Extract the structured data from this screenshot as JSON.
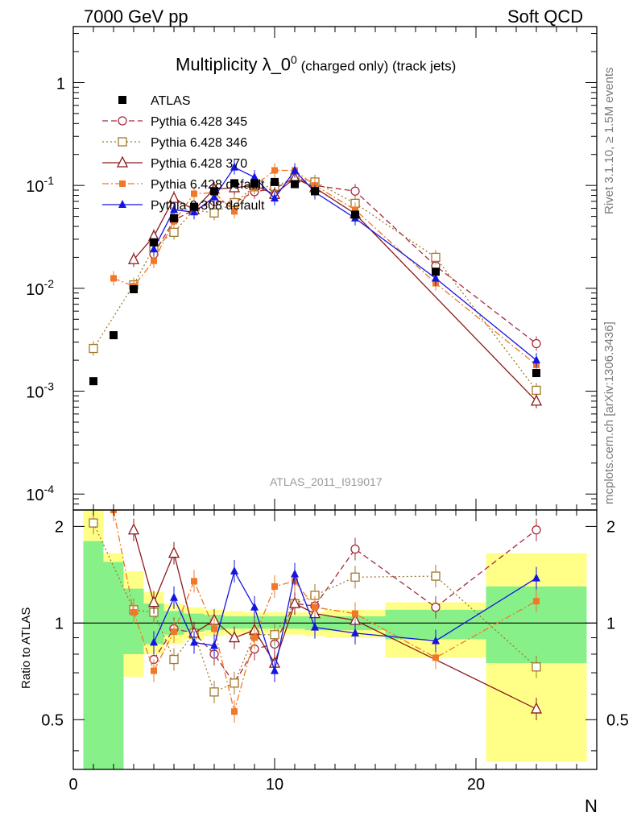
{
  "header": {
    "left": "7000 GeV pp",
    "right": "Soft QCD"
  },
  "title": {
    "main": "Multiplicity λ_0",
    "superscript": "0",
    "suffix": " (charged only) (track jets)"
  },
  "side_labels": {
    "top": "Rivet 3.1.10, ≥ 1.5M events",
    "bottom": "mcplots.cern.ch [arXiv:1306.3436]"
  },
  "analysis_id": "ATLAS_2011_I919017",
  "x_axis_label": "N",
  "ratio_axis_label": "Ratio to ATLAS",
  "legend": [
    {
      "name": "ATLAS"
    },
    {
      "name": "Pythia 6.428 345"
    },
    {
      "name": "Pythia 6.428 346"
    },
    {
      "name": "Pythia 6.428 370"
    },
    {
      "name": "Pythia 6.428 default"
    },
    {
      "name": "Pythia 8.308 default"
    }
  ],
  "chart_data": {
    "type": "scatter",
    "xlim": [
      0,
      26
    ],
    "ylim_main": [
      7e-05,
      3.5
    ],
    "y_scale_main": "log",
    "ylim_ratio": [
      0.35,
      2.25
    ],
    "y_scale_ratio": "log",
    "x_ticks": [
      0,
      10,
      20
    ],
    "y_ticks_main": [
      "10^-4",
      "10^-3",
      "10^-2",
      "10^-1",
      "1"
    ],
    "y_ticks_ratio": [
      "0.5",
      "1",
      "2"
    ],
    "data": {
      "name": "ATLAS",
      "color": "#000000",
      "x": [
        1,
        2,
        3,
        4,
        5,
        6,
        7,
        8,
        9,
        10,
        11,
        12,
        14,
        18,
        23
      ],
      "y": [
        0.00125,
        0.0035,
        0.0098,
        0.028,
        0.048,
        0.062,
        0.088,
        0.105,
        0.105,
        0.108,
        0.103,
        0.088,
        0.052,
        0.0145,
        0.0015
      ]
    },
    "bands": [
      {
        "x": [
          0.5,
          1.5
        ],
        "green": [
          0.35,
          1.8
        ],
        "yellow": [
          0.35,
          2.25
        ]
      },
      {
        "x": [
          1.5,
          2.5
        ],
        "green": [
          0.35,
          1.55
        ],
        "yellow": [
          0.35,
          1.65
        ]
      },
      {
        "x": [
          2.5,
          3.5
        ],
        "green": [
          0.8,
          1.28
        ],
        "yellow": [
          0.68,
          1.45
        ]
      },
      {
        "x": [
          3.5,
          4.5
        ],
        "green": [
          0.86,
          1.15
        ],
        "yellow": [
          0.8,
          1.25
        ]
      },
      {
        "x": [
          4.5,
          5.5
        ],
        "green": [
          0.92,
          1.09
        ],
        "yellow": [
          0.86,
          1.15
        ]
      },
      {
        "x": [
          5.5,
          6.5
        ],
        "green": [
          0.94,
          1.07
        ],
        "yellow": [
          0.89,
          1.12
        ]
      },
      {
        "x": [
          6.5,
          7.5
        ],
        "green": [
          0.95,
          1.06
        ],
        "yellow": [
          0.91,
          1.1
        ]
      },
      {
        "x": [
          7.5,
          8.5
        ],
        "green": [
          0.96,
          1.05
        ],
        "yellow": [
          0.92,
          1.09
        ]
      },
      {
        "x": [
          8.5,
          9.5
        ],
        "green": [
          0.96,
          1.05
        ],
        "yellow": [
          0.93,
          1.08
        ]
      },
      {
        "x": [
          9.5,
          10.5
        ],
        "green": [
          0.96,
          1.05
        ],
        "yellow": [
          0.93,
          1.08
        ]
      },
      {
        "x": [
          10.5,
          11.5
        ],
        "green": [
          0.96,
          1.05
        ],
        "yellow": [
          0.92,
          1.08
        ]
      },
      {
        "x": [
          11.5,
          12.5
        ],
        "green": [
          0.95,
          1.05
        ],
        "yellow": [
          0.91,
          1.08
        ]
      },
      {
        "x": [
          12.5,
          15.5
        ],
        "green": [
          0.95,
          1.05
        ],
        "yellow": [
          0.9,
          1.1
        ]
      },
      {
        "x": [
          15.5,
          20.5
        ],
        "green": [
          0.89,
          1.1
        ],
        "yellow": [
          0.78,
          1.16
        ]
      },
      {
        "x": [
          20.5,
          25.5
        ],
        "green": [
          0.75,
          1.3
        ],
        "yellow": [
          0.37,
          1.65
        ]
      }
    ],
    "series": [
      {
        "name": "Pythia 6.428 345",
        "color": "#a52a3c",
        "marker": "circle-open",
        "dash": "7,4",
        "x": [
          4,
          5,
          6,
          7,
          8,
          9,
          10,
          11,
          12,
          14,
          18,
          23
        ],
        "y": [
          0.0215,
          0.046,
          0.058,
          0.07,
          0.068,
          0.087,
          0.093,
          0.118,
          0.1,
          0.088,
          0.0165,
          0.0029
        ],
        "ratio": [
          0.77,
          0.96,
          0.93,
          0.8,
          0.65,
          0.83,
          0.86,
          1.15,
          1.13,
          1.7,
          1.12,
          1.95
        ]
      },
      {
        "name": "Pythia 6.428 346",
        "color": "#a0782a",
        "marker": "square-open",
        "dash": "2,3",
        "x": [
          1,
          3,
          4,
          5,
          6,
          7,
          8,
          9,
          10,
          11,
          12,
          14,
          18,
          23
        ],
        "y": [
          0.0026,
          0.0108,
          0.025,
          0.035,
          0.058,
          0.054,
          0.068,
          0.097,
          0.098,
          0.118,
          0.108,
          0.067,
          0.02,
          0.00102
        ],
        "ratio": [
          2.05,
          1.1,
          1.08,
          0.77,
          0.93,
          0.61,
          0.65,
          0.92,
          0.92,
          1.15,
          1.22,
          1.39,
          1.4,
          0.73
        ]
      },
      {
        "name": "Pythia 6.428 370",
        "color": "#8b1a1a",
        "marker": "triangle-open",
        "dash": "",
        "x": [
          3,
          4,
          5,
          6,
          7,
          8,
          9,
          10,
          11,
          12,
          14,
          23
        ],
        "y": [
          0.019,
          0.032,
          0.075,
          0.058,
          0.092,
          0.095,
          0.1,
          0.082,
          0.118,
          0.095,
          0.053,
          0.0008
        ],
        "ratio": [
          1.95,
          1.16,
          1.65,
          0.93,
          1.02,
          0.9,
          0.95,
          0.75,
          1.15,
          1.07,
          1.02,
          0.54
        ]
      },
      {
        "name": "Pythia 6.428 default",
        "color": "#f07828",
        "marker": "square-filled",
        "dash": "8,3,2,3",
        "x": [
          2,
          3,
          4,
          5,
          6,
          7,
          8,
          9,
          10,
          11,
          12,
          14,
          18,
          23
        ],
        "y": [
          0.0125,
          0.0105,
          0.0185,
          0.045,
          0.083,
          0.085,
          0.056,
          0.1,
          0.14,
          0.14,
          0.1,
          0.058,
          0.0112,
          0.0018
        ],
        "ratio": [
          2.6,
          1.08,
          0.71,
          0.94,
          1.35,
          0.96,
          0.53,
          0.9,
          1.3,
          1.35,
          1.12,
          1.07,
          0.78,
          1.17
        ]
      },
      {
        "name": "Pythia 8.308 default",
        "color": "#1515e0",
        "marker": "triangle-filled",
        "dash": "",
        "x": [
          4,
          5,
          6,
          7,
          8,
          9,
          10,
          11,
          12,
          14,
          18,
          23
        ],
        "y": [
          0.024,
          0.058,
          0.055,
          0.077,
          0.15,
          0.12,
          0.075,
          0.14,
          0.086,
          0.048,
          0.0125,
          0.002
        ],
        "ratio": [
          0.87,
          1.2,
          0.87,
          0.85,
          1.45,
          1.12,
          0.71,
          1.42,
          0.97,
          0.93,
          0.88,
          1.38
        ]
      }
    ]
  }
}
